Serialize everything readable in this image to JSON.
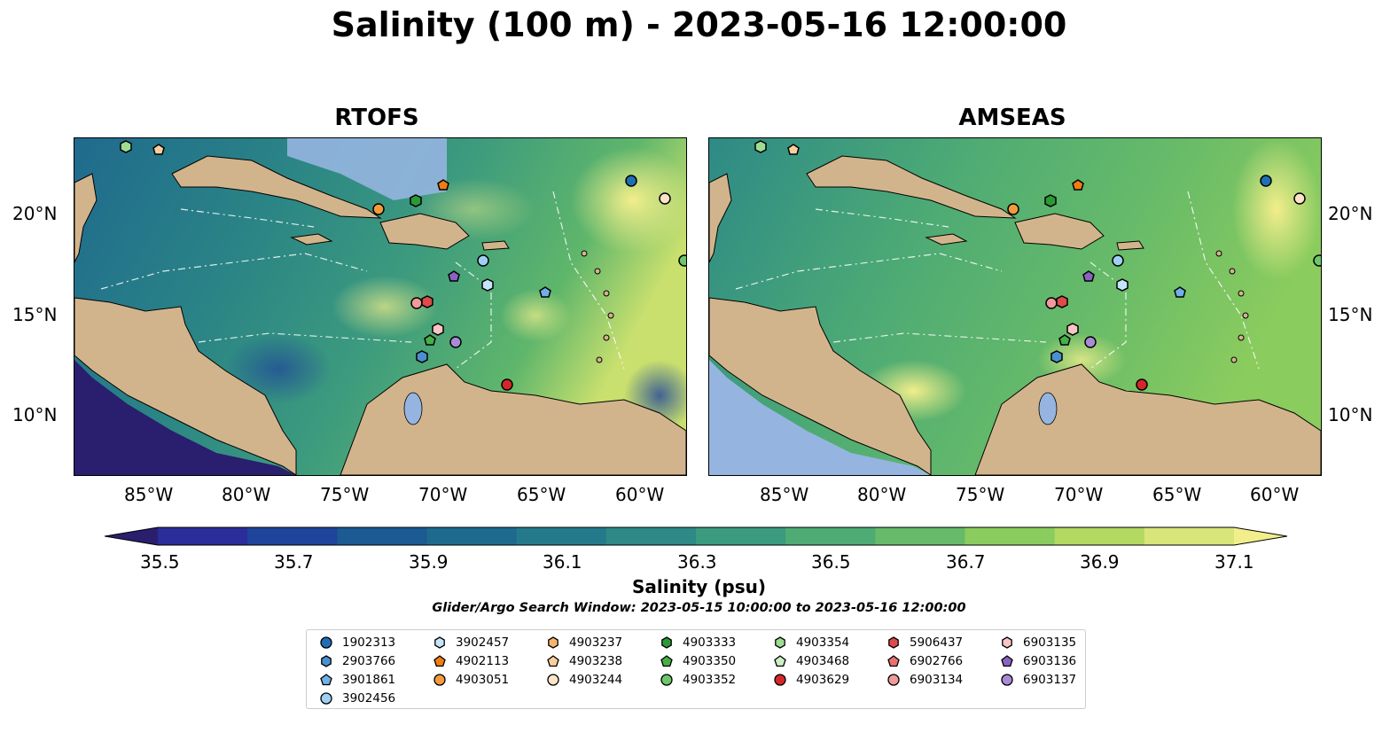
{
  "title": "Salinity (100 m) - 2023-05-16 12:00:00",
  "panels": [
    {
      "title": "RTOFS"
    },
    {
      "title": "AMSEAS"
    }
  ],
  "axes": {
    "lat_ticks": [
      "20°N",
      "15°N",
      "10°N"
    ],
    "lon_ticks": [
      "85°W",
      "80°W",
      "75°W",
      "70°W",
      "65°W",
      "60°W"
    ]
  },
  "colorbar": {
    "label": "Salinity (psu)",
    "ticks": [
      "35.5",
      "35.7",
      "35.9",
      "36.1",
      "36.3",
      "36.5",
      "36.7",
      "36.9",
      "37.1"
    ],
    "colors": [
      "#2a1e6e",
      "#2a2d9a",
      "#1f449b",
      "#1b5a93",
      "#1e6a8e",
      "#247a8b",
      "#2d8a86",
      "#3b9b7f",
      "#4eab74",
      "#66ba69",
      "#8bcc5e",
      "#b4d962",
      "#d8e579",
      "#f2ee8b"
    ]
  },
  "search_window": "Glider/Argo Search Window: 2023-05-15 10:00:00 to 2023-05-16 12:00:00",
  "legend": [
    {
      "label": "1902313",
      "marker": "circle",
      "color": "#1f6fb5"
    },
    {
      "label": "2903766",
      "marker": "hexagon",
      "color": "#4a90d0"
    },
    {
      "label": "3901861",
      "marker": "pentagon",
      "color": "#6fb0e6"
    },
    {
      "label": "3902456",
      "marker": "circle",
      "color": "#9fd0f4"
    },
    {
      "label": "3902457",
      "marker": "hexagon",
      "color": "#c6e5fb"
    },
    {
      "label": "4902113",
      "marker": "pentagon",
      "color": "#f07d0f"
    },
    {
      "label": "4903051",
      "marker": "circle",
      "color": "#f59a3c"
    },
    {
      "label": "4903237",
      "marker": "hexagon",
      "color": "#f8b46c"
    },
    {
      "label": "4903238",
      "marker": "pentagon",
      "color": "#fbcf9c"
    },
    {
      "label": "4903244",
      "marker": "circle",
      "color": "#fde3c8"
    },
    {
      "label": "4903333",
      "marker": "hexagon",
      "color": "#2a9a38"
    },
    {
      "label": "4903350",
      "marker": "pentagon",
      "color": "#45b048"
    },
    {
      "label": "4903352",
      "marker": "circle",
      "color": "#6cc76a"
    },
    {
      "label": "4903354",
      "marker": "hexagon",
      "color": "#9edc92"
    },
    {
      "label": "4903468",
      "marker": "pentagon",
      "color": "#ccefc4"
    },
    {
      "label": "4903629",
      "marker": "circle",
      "color": "#d62728"
    },
    {
      "label": "5906437",
      "marker": "hexagon",
      "color": "#de4b4b"
    },
    {
      "label": "6902766",
      "marker": "pentagon",
      "color": "#e87171"
    },
    {
      "label": "6903134",
      "marker": "circle",
      "color": "#f09a9a"
    },
    {
      "label": "6903135",
      "marker": "hexagon",
      "color": "#f8c4c4"
    },
    {
      "label": "6903136",
      "marker": "pentagon",
      "color": "#8a63c2"
    },
    {
      "label": "6903137",
      "marker": "circle",
      "color": "#a78bd6"
    }
  ]
}
